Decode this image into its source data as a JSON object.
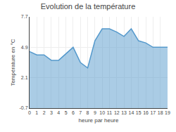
{
  "chart_data": {
    "type": "area",
    "title": "Evolution de la température",
    "xlabel": "heure par heure",
    "ylabel": "Température en °C",
    "x": [
      0,
      1,
      2,
      3,
      4,
      5,
      6,
      7,
      8,
      9,
      10,
      11,
      12,
      13,
      14,
      15,
      16,
      17,
      18,
      19
    ],
    "values": [
      4.5,
      4.2,
      4.2,
      3.7,
      3.7,
      4.3,
      4.9,
      3.5,
      3.0,
      5.5,
      6.6,
      6.6,
      6.3,
      5.9,
      6.6,
      5.5,
      5.3,
      4.9,
      4.9,
      4.9
    ],
    "color": "#5599cc",
    "xlim": [
      0,
      19
    ],
    "xticks": [
      0,
      1,
      2,
      3,
      4,
      5,
      6,
      7,
      8,
      9,
      10,
      11,
      12,
      13,
      14,
      15,
      16,
      17,
      18,
      19
    ],
    "ylim": [
      -0.7,
      7.7
    ],
    "yticks": [
      -0.7,
      2.1,
      4.9,
      7.7
    ],
    "grid": true
  }
}
